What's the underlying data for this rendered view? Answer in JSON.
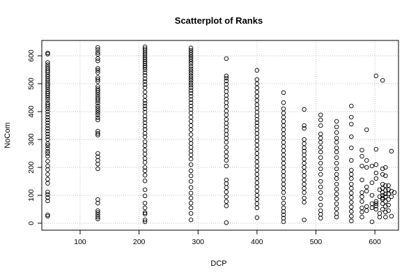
{
  "chart_data": {
    "type": "scatter",
    "title": "Scatterplot of Ranks",
    "xlabel": "DCP",
    "ylabel": "NoCom",
    "xlim": [
      35,
      640
    ],
    "ylim": [
      -25,
      655
    ],
    "xticks": [
      100,
      200,
      300,
      400,
      500,
      600
    ],
    "yticks": [
      0,
      100,
      200,
      300,
      400,
      500,
      600
    ],
    "grid": true,
    "marker": "open-circle",
    "colors": {
      "points": "#000000",
      "grid": "#bdbdbd",
      "background": "#ffffff"
    },
    "points": [
      [
        45,
        610
      ],
      [
        45,
        606
      ],
      [
        45,
        576
      ],
      [
        45,
        568
      ],
      [
        45,
        560
      ],
      [
        45,
        553
      ],
      [
        45,
        546
      ],
      [
        45,
        540
      ],
      [
        45,
        532
      ],
      [
        45,
        525
      ],
      [
        45,
        517
      ],
      [
        45,
        510
      ],
      [
        45,
        502
      ],
      [
        45,
        495
      ],
      [
        45,
        488
      ],
      [
        45,
        480
      ],
      [
        45,
        472
      ],
      [
        45,
        465
      ],
      [
        45,
        458
      ],
      [
        45,
        450
      ],
      [
        45,
        442
      ],
      [
        45,
        432
      ],
      [
        45,
        425
      ],
      [
        45,
        418
      ],
      [
        45,
        410
      ],
      [
        45,
        400
      ],
      [
        45,
        390
      ],
      [
        45,
        380
      ],
      [
        45,
        370
      ],
      [
        45,
        360
      ],
      [
        45,
        350
      ],
      [
        45,
        340
      ],
      [
        45,
        330
      ],
      [
        45,
        320
      ],
      [
        45,
        310
      ],
      [
        45,
        300
      ],
      [
        45,
        285
      ],
      [
        45,
        278
      ],
      [
        45,
        268
      ],
      [
        45,
        258
      ],
      [
        45,
        250
      ],
      [
        45,
        240
      ],
      [
        45,
        222
      ],
      [
        45,
        205
      ],
      [
        45,
        192
      ],
      [
        45,
        175
      ],
      [
        45,
        158
      ],
      [
        45,
        143
      ],
      [
        45,
        112
      ],
      [
        45,
        103
      ],
      [
        45,
        92
      ],
      [
        45,
        80
      ],
      [
        45,
        30
      ],
      [
        45,
        25
      ],
      [
        130,
        630
      ],
      [
        130,
        622
      ],
      [
        130,
        612
      ],
      [
        130,
        605
      ],
      [
        130,
        590
      ],
      [
        130,
        582
      ],
      [
        130,
        555
      ],
      [
        130,
        548
      ],
      [
        130,
        540
      ],
      [
        130,
        522
      ],
      [
        130,
        515
      ],
      [
        130,
        508
      ],
      [
        130,
        490
      ],
      [
        130,
        482
      ],
      [
        130,
        475
      ],
      [
        130,
        468
      ],
      [
        130,
        460
      ],
      [
        130,
        452
      ],
      [
        130,
        445
      ],
      [
        130,
        438
      ],
      [
        130,
        430
      ],
      [
        130,
        420
      ],
      [
        130,
        412
      ],
      [
        130,
        404
      ],
      [
        130,
        396
      ],
      [
        130,
        388
      ],
      [
        130,
        378
      ],
      [
        130,
        370
      ],
      [
        130,
        330
      ],
      [
        130,
        322
      ],
      [
        130,
        316
      ],
      [
        130,
        250
      ],
      [
        130,
        238
      ],
      [
        130,
        225
      ],
      [
        130,
        212
      ],
      [
        130,
        195
      ],
      [
        130,
        85
      ],
      [
        130,
        72
      ],
      [
        130,
        45
      ],
      [
        130,
        38
      ],
      [
        130,
        30
      ],
      [
        130,
        22
      ],
      [
        130,
        15
      ],
      [
        210,
        632
      ],
      [
        210,
        625
      ],
      [
        210,
        618
      ],
      [
        210,
        610
      ],
      [
        210,
        603
      ],
      [
        210,
        595
      ],
      [
        210,
        588
      ],
      [
        210,
        580
      ],
      [
        210,
        573
      ],
      [
        210,
        565
      ],
      [
        210,
        558
      ],
      [
        210,
        550
      ],
      [
        210,
        540
      ],
      [
        210,
        530
      ],
      [
        210,
        518
      ],
      [
        210,
        508
      ],
      [
        210,
        497
      ],
      [
        210,
        486
      ],
      [
        210,
        470
      ],
      [
        210,
        455
      ],
      [
        210,
        440
      ],
      [
        210,
        430
      ],
      [
        210,
        420
      ],
      [
        210,
        410
      ],
      [
        210,
        398
      ],
      [
        210,
        384
      ],
      [
        210,
        372
      ],
      [
        210,
        360
      ],
      [
        210,
        348
      ],
      [
        210,
        336
      ],
      [
        210,
        322
      ],
      [
        210,
        310
      ],
      [
        210,
        292
      ],
      [
        210,
        278
      ],
      [
        210,
        262
      ],
      [
        210,
        248
      ],
      [
        210,
        232
      ],
      [
        210,
        218
      ],
      [
        210,
        200
      ],
      [
        210,
        188
      ],
      [
        210,
        172
      ],
      [
        210,
        152
      ],
      [
        210,
        120
      ],
      [
        210,
        98
      ],
      [
        210,
        72
      ],
      [
        210,
        55
      ],
      [
        210,
        38
      ],
      [
        210,
        33
      ],
      [
        210,
        12
      ],
      [
        210,
        5
      ],
      [
        288,
        628
      ],
      [
        288,
        620
      ],
      [
        288,
        612
      ],
      [
        288,
        604
      ],
      [
        288,
        596
      ],
      [
        288,
        588
      ],
      [
        288,
        580
      ],
      [
        288,
        572
      ],
      [
        288,
        562
      ],
      [
        288,
        553
      ],
      [
        288,
        545
      ],
      [
        288,
        537
      ],
      [
        288,
        528
      ],
      [
        288,
        520
      ],
      [
        288,
        512
      ],
      [
        288,
        503
      ],
      [
        288,
        495
      ],
      [
        288,
        486
      ],
      [
        288,
        476
      ],
      [
        288,
        466
      ],
      [
        288,
        455
      ],
      [
        288,
        443
      ],
      [
        288,
        432
      ],
      [
        288,
        420
      ],
      [
        288,
        408
      ],
      [
        288,
        395
      ],
      [
        288,
        380
      ],
      [
        288,
        365
      ],
      [
        288,
        350
      ],
      [
        288,
        335
      ],
      [
        288,
        318
      ],
      [
        288,
        300
      ],
      [
        288,
        286
      ],
      [
        288,
        272
      ],
      [
        288,
        258
      ],
      [
        288,
        245
      ],
      [
        288,
        230
      ],
      [
        288,
        210
      ],
      [
        288,
        188
      ],
      [
        288,
        170
      ],
      [
        288,
        150
      ],
      [
        288,
        128
      ],
      [
        288,
        108
      ],
      [
        288,
        90
      ],
      [
        288,
        72
      ],
      [
        288,
        55
      ],
      [
        288,
        35
      ],
      [
        288,
        12
      ],
      [
        348,
        590
      ],
      [
        348,
        528
      ],
      [
        348,
        520
      ],
      [
        348,
        510
      ],
      [
        348,
        498
      ],
      [
        348,
        485
      ],
      [
        348,
        472
      ],
      [
        348,
        458
      ],
      [
        348,
        445
      ],
      [
        348,
        432
      ],
      [
        348,
        418
      ],
      [
        348,
        402
      ],
      [
        348,
        388
      ],
      [
        348,
        372
      ],
      [
        348,
        358
      ],
      [
        348,
        345
      ],
      [
        348,
        332
      ],
      [
        348,
        318
      ],
      [
        348,
        305
      ],
      [
        348,
        290
      ],
      [
        348,
        272
      ],
      [
        348,
        255
      ],
      [
        348,
        240
      ],
      [
        348,
        225
      ],
      [
        348,
        205
      ],
      [
        348,
        155
      ],
      [
        348,
        142
      ],
      [
        348,
        128
      ],
      [
        348,
        112
      ],
      [
        348,
        95
      ],
      [
        348,
        78
      ],
      [
        348,
        62
      ],
      [
        348,
        2
      ],
      [
        400,
        548
      ],
      [
        400,
        515
      ],
      [
        400,
        500
      ],
      [
        400,
        485
      ],
      [
        400,
        470
      ],
      [
        400,
        455
      ],
      [
        400,
        440
      ],
      [
        400,
        425
      ],
      [
        400,
        412
      ],
      [
        400,
        398
      ],
      [
        400,
        385
      ],
      [
        400,
        372
      ],
      [
        400,
        360
      ],
      [
        400,
        348
      ],
      [
        400,
        335
      ],
      [
        400,
        322
      ],
      [
        400,
        308
      ],
      [
        400,
        295
      ],
      [
        400,
        280
      ],
      [
        400,
        265
      ],
      [
        400,
        250
      ],
      [
        400,
        235
      ],
      [
        400,
        220
      ],
      [
        400,
        205
      ],
      [
        400,
        190
      ],
      [
        400,
        175
      ],
      [
        400,
        160
      ],
      [
        400,
        145
      ],
      [
        400,
        130
      ],
      [
        400,
        115
      ],
      [
        400,
        100
      ],
      [
        400,
        85
      ],
      [
        400,
        70
      ],
      [
        400,
        55
      ],
      [
        400,
        20
      ],
      [
        445,
        468
      ],
      [
        445,
        432
      ],
      [
        445,
        410
      ],
      [
        445,
        395
      ],
      [
        445,
        380
      ],
      [
        445,
        365
      ],
      [
        445,
        350
      ],
      [
        445,
        335
      ],
      [
        445,
        320
      ],
      [
        445,
        305
      ],
      [
        445,
        290
      ],
      [
        445,
        275
      ],
      [
        445,
        260
      ],
      [
        445,
        245
      ],
      [
        445,
        230
      ],
      [
        445,
        215
      ],
      [
        445,
        200
      ],
      [
        445,
        185
      ],
      [
        445,
        170
      ],
      [
        445,
        155
      ],
      [
        445,
        140
      ],
      [
        445,
        125
      ],
      [
        445,
        110
      ],
      [
        445,
        90
      ],
      [
        445,
        72
      ],
      [
        445,
        55
      ],
      [
        445,
        42
      ],
      [
        445,
        30
      ],
      [
        445,
        18
      ],
      [
        445,
        5
      ],
      [
        480,
        408
      ],
      [
        480,
        350
      ],
      [
        480,
        340
      ],
      [
        480,
        300
      ],
      [
        480,
        285
      ],
      [
        480,
        270
      ],
      [
        480,
        258
      ],
      [
        480,
        245
      ],
      [
        480,
        230
      ],
      [
        480,
        215
      ],
      [
        480,
        200
      ],
      [
        480,
        185
      ],
      [
        480,
        170
      ],
      [
        480,
        155
      ],
      [
        480,
        140
      ],
      [
        480,
        125
      ],
      [
        480,
        110
      ],
      [
        480,
        90
      ],
      [
        480,
        75
      ],
      [
        480,
        12
      ],
      [
        508,
        388
      ],
      [
        508,
        370
      ],
      [
        508,
        350
      ],
      [
        508,
        320
      ],
      [
        508,
        305
      ],
      [
        508,
        290
      ],
      [
        508,
        272
      ],
      [
        508,
        255
      ],
      [
        508,
        235
      ],
      [
        508,
        215
      ],
      [
        508,
        195
      ],
      [
        508,
        175
      ],
      [
        508,
        150
      ],
      [
        508,
        130
      ],
      [
        508,
        110
      ],
      [
        508,
        88
      ],
      [
        508,
        65
      ],
      [
        508,
        45
      ],
      [
        508,
        32
      ],
      [
        508,
        18
      ],
      [
        535,
        365
      ],
      [
        535,
        345
      ],
      [
        535,
        325
      ],
      [
        535,
        305
      ],
      [
        535,
        290
      ],
      [
        535,
        270
      ],
      [
        535,
        255
      ],
      [
        535,
        235
      ],
      [
        535,
        215
      ],
      [
        535,
        195
      ],
      [
        535,
        175
      ],
      [
        535,
        160
      ],
      [
        535,
        140
      ],
      [
        535,
        122
      ],
      [
        535,
        105
      ],
      [
        535,
        88
      ],
      [
        535,
        70
      ],
      [
        535,
        52
      ],
      [
        535,
        35
      ],
      [
        535,
        22
      ],
      [
        560,
        420
      ],
      [
        560,
        380
      ],
      [
        560,
        355
      ],
      [
        560,
        310
      ],
      [
        560,
        270
      ],
      [
        560,
        225
      ],
      [
        560,
        190
      ],
      [
        560,
        175
      ],
      [
        560,
        160
      ],
      [
        560,
        140
      ],
      [
        560,
        125
      ],
      [
        560,
        108
      ],
      [
        560,
        92
      ],
      [
        560,
        75
      ],
      [
        560,
        58
      ],
      [
        560,
        42
      ],
      [
        560,
        25
      ],
      [
        560,
        8
      ],
      [
        578,
        262
      ],
      [
        578,
        240
      ],
      [
        578,
        205
      ],
      [
        578,
        155
      ],
      [
        578,
        110
      ],
      [
        578,
        95
      ],
      [
        578,
        78
      ],
      [
        578,
        55
      ],
      [
        578,
        40
      ],
      [
        578,
        22
      ],
      [
        586,
        335
      ],
      [
        586,
        225
      ],
      [
        586,
        200
      ],
      [
        586,
        130
      ],
      [
        586,
        115
      ],
      [
        586,
        60
      ],
      [
        586,
        45
      ],
      [
        595,
        205
      ],
      [
        595,
        145
      ],
      [
        595,
        100
      ],
      [
        595,
        70
      ],
      [
        595,
        55
      ],
      [
        595,
        5
      ],
      [
        602,
        528
      ],
      [
        602,
        265
      ],
      [
        602,
        210
      ],
      [
        602,
        180
      ],
      [
        602,
        160
      ],
      [
        602,
        78
      ],
      [
        602,
        70
      ],
      [
        602,
        62
      ],
      [
        602,
        50
      ],
      [
        608,
        120
      ],
      [
        608,
        95
      ],
      [
        608,
        35
      ],
      [
        608,
        22
      ],
      [
        613,
        512
      ],
      [
        613,
        195
      ],
      [
        613,
        175
      ],
      [
        613,
        140
      ],
      [
        613,
        125
      ],
      [
        613,
        110
      ],
      [
        613,
        100
      ],
      [
        613,
        90
      ],
      [
        613,
        85
      ],
      [
        613,
        70
      ],
      [
        613,
        50
      ],
      [
        618,
        200
      ],
      [
        618,
        170
      ],
      [
        618,
        135
      ],
      [
        618,
        118
      ],
      [
        618,
        105
      ],
      [
        618,
        95
      ],
      [
        618,
        78
      ],
      [
        618,
        60
      ],
      [
        618,
        40
      ],
      [
        618,
        22
      ],
      [
        623,
        135
      ],
      [
        623,
        120
      ],
      [
        623,
        105
      ],
      [
        623,
        85
      ],
      [
        623,
        65
      ],
      [
        623,
        45
      ],
      [
        628,
        258
      ],
      [
        628,
        115
      ],
      [
        628,
        95
      ],
      [
        628,
        25
      ],
      [
        633,
        110
      ]
    ]
  }
}
